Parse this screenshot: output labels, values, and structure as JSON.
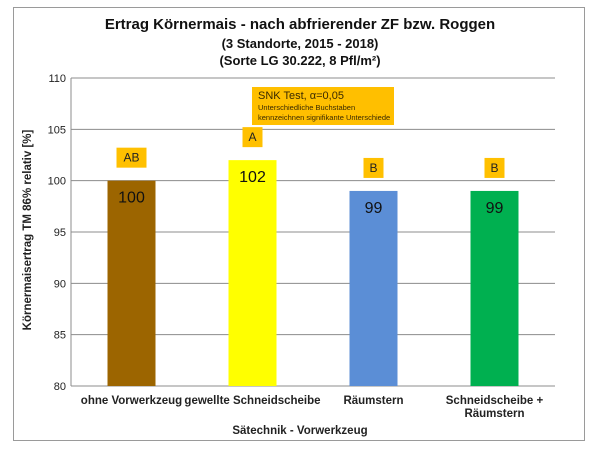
{
  "chart_data": {
    "type": "bar",
    "title": "Ertrag Körnermais - nach abfrierender ZF bzw. Roggen",
    "subtitle_lines": [
      "(3 Standorte, 2015 - 2018)",
      "(Sorte LG 30.222, 8 Pfl/m²)"
    ],
    "xlabel": "Sätechnik - Vorwerkzeug",
    "ylabel": "Körnermaisertrag TM 86% relativ [%]",
    "ylim": [
      80,
      110
    ],
    "yticks": [
      "80",
      "85",
      "90",
      "95",
      "100",
      "105",
      "110"
    ],
    "grid": true,
    "categories": [
      [
        "ohne Vorwerkzeug"
      ],
      [
        "gewellte Schneidscheibe"
      ],
      [
        "Räumstern"
      ],
      [
        "Schneidscheibe +",
        "Räumstern"
      ]
    ],
    "values": [
      100,
      102,
      99,
      99
    ],
    "value_labels": [
      "100",
      "102",
      "99",
      "99"
    ],
    "significance_letters": [
      "AB",
      "A",
      "B",
      "B"
    ],
    "bar_colors": [
      "#9c6500",
      "#ffff00",
      "#5b8ed6",
      "#00b050"
    ],
    "label_box_color": "#ffc000",
    "annotation": {
      "line1": "SNK Test, α=0,05",
      "line2": "Unterschiedliche Buchstaben",
      "line3": "kennzeichnen signifikante Unterschiede"
    }
  }
}
